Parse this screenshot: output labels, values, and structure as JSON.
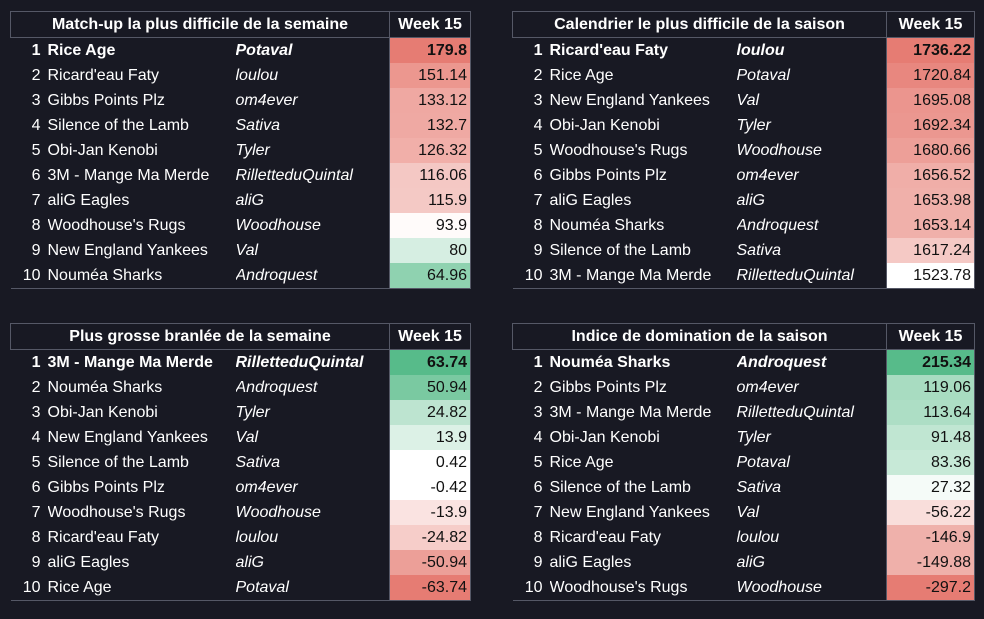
{
  "colors": {
    "background": "#181923",
    "grid": "#555866",
    "red_scale": [
      "#e67c73",
      "#ffffff"
    ],
    "green_scale": [
      "#57bb8a",
      "#ffffff"
    ]
  },
  "panels": [
    {
      "title": "Match-up la plus difficile de la semaine",
      "week_label": "Week 15",
      "rows": [
        {
          "rank": "1",
          "team": "Rice Age",
          "owner": "Potaval",
          "value": "179.8",
          "color": "#e67c73"
        },
        {
          "rank": "2",
          "team": "Ricard'eau Faty",
          "owner": "loulou",
          "value": "151.14",
          "color": "#ec978f"
        },
        {
          "rank": "3",
          "team": "Gibbs Points Plz",
          "owner": "om4ever",
          "value": "133.12",
          "color": "#efa8a2"
        },
        {
          "rank": "4",
          "team": "Silence of the Lamb",
          "owner": "Sativa",
          "value": "132.7",
          "color": "#efa9a3"
        },
        {
          "rank": "5",
          "team": "Obi-Jan Kenobi",
          "owner": "Tyler",
          "value": "126.32",
          "color": "#f1afa9"
        },
        {
          "rank": "6",
          "team": "3M - Mange Ma Merde",
          "owner": "RilletteduQuintal",
          "value": "116.06",
          "color": "#f4c8c4"
        },
        {
          "rank": "7",
          "team": "aliG Eagles",
          "owner": "aliG",
          "value": "115.9",
          "color": "#f4c9c5"
        },
        {
          "rank": "8",
          "team": "Woodhouse's Rugs",
          "owner": "Woodhouse",
          "value": "93.9",
          "color": "#fffbfa"
        },
        {
          "rank": "9",
          "team": "New England Yankees",
          "owner": "Val",
          "value": "80",
          "color": "#d6eee2"
        },
        {
          "rank": "10",
          "team": "Nouméa Sharks",
          "owner": "Androquest",
          "value": "64.96",
          "color": "#8fd2b0"
        }
      ]
    },
    {
      "title": "Calendrier le plus difficile de la saison",
      "week_label": "Week 15",
      "rows": [
        {
          "rank": "1",
          "team": "Ricard'eau Faty",
          "owner": "loulou",
          "value": "1736.22",
          "color": "#e67c73"
        },
        {
          "rank": "2",
          "team": "Rice Age",
          "owner": "Potaval",
          "value": "1720.84",
          "color": "#e8877f"
        },
        {
          "rank": "3",
          "team": "New England Yankees",
          "owner": "Val",
          "value": "1695.08",
          "color": "#eb958e"
        },
        {
          "rank": "4",
          "team": "Obi-Jan Kenobi",
          "owner": "Tyler",
          "value": "1692.34",
          "color": "#eb9790"
        },
        {
          "rank": "5",
          "team": "Woodhouse's Rugs",
          "owner": "Woodhouse",
          "value": "1680.66",
          "color": "#ed9f98"
        },
        {
          "rank": "6",
          "team": "Gibbs Points Plz",
          "owner": "om4ever",
          "value": "1656.52",
          "color": "#f0aea8"
        },
        {
          "rank": "7",
          "team": "aliG Eagles",
          "owner": "aliG",
          "value": "1653.98",
          "color": "#f0b0aa"
        },
        {
          "rank": "8",
          "team": "Nouméa Sharks",
          "owner": "Androquest",
          "value": "1653.14",
          "color": "#f0b0aa"
        },
        {
          "rank": "9",
          "team": "Silence of the Lamb",
          "owner": "Sativa",
          "value": "1617.24",
          "color": "#f5c9c5"
        },
        {
          "rank": "10",
          "team": "3M - Mange Ma Merde",
          "owner": "RilletteduQuintal",
          "value": "1523.78",
          "color": "#ffffff"
        }
      ]
    },
    {
      "title": "Plus grosse branlée de la semaine",
      "week_label": "Week 15",
      "rows": [
        {
          "rank": "1",
          "team": "3M - Mange Ma Merde",
          "owner": "RilletteduQuintal",
          "value": "63.74",
          "color": "#57bb8a"
        },
        {
          "rank": "2",
          "team": "Nouméa Sharks",
          "owner": "Androquest",
          "value": "50.94",
          "color": "#7ac9a1"
        },
        {
          "rank": "3",
          "team": "Obi-Jan Kenobi",
          "owner": "Tyler",
          "value": "24.82",
          "color": "#bde4d0"
        },
        {
          "rank": "4",
          "team": "New England Yankees",
          "owner": "Val",
          "value": "13.9",
          "color": "#dcf1e6"
        },
        {
          "rank": "5",
          "team": "Silence of the Lamb",
          "owner": "Sativa",
          "value": "0.42",
          "color": "#ffffff"
        },
        {
          "rank": "6",
          "team": "Gibbs Points Plz",
          "owner": "om4ever",
          "value": "-0.42",
          "color": "#ffffff"
        },
        {
          "rank": "7",
          "team": "Woodhouse's Rugs",
          "owner": "Woodhouse",
          "value": "-13.9",
          "color": "#fae3e1"
        },
        {
          "rank": "8",
          "team": "Ricard'eau Faty",
          "owner": "loulou",
          "value": "-24.82",
          "color": "#f6cdc9"
        },
        {
          "rank": "9",
          "team": "aliG Eagles",
          "owner": "aliG",
          "value": "-50.94",
          "color": "#ec9f98"
        },
        {
          "rank": "10",
          "team": "Rice Age",
          "owner": "Potaval",
          "value": "-63.74",
          "color": "#e67c73"
        }
      ]
    },
    {
      "title": "Indice de domination de la saison",
      "week_label": "Week 15",
      "rows": [
        {
          "rank": "1",
          "team": "Nouméa Sharks",
          "owner": "Androquest",
          "value": "215.34",
          "color": "#57bb8a"
        },
        {
          "rank": "2",
          "team": "Gibbs Points Plz",
          "owner": "om4ever",
          "value": "119.06",
          "color": "#a8dcc1"
        },
        {
          "rank": "3",
          "team": "3M - Mange Ma Merde",
          "owner": "RilletteduQuintal",
          "value": "113.64",
          "color": "#addec5"
        },
        {
          "rank": "4",
          "team": "Obi-Jan Kenobi",
          "owner": "Tyler",
          "value": "91.48",
          "color": "#c0e6d2"
        },
        {
          "rank": "5",
          "team": "Rice Age",
          "owner": "Potaval",
          "value": "83.36",
          "color": "#c7e9d7"
        },
        {
          "rank": "6",
          "team": "Silence of the Lamb",
          "owner": "Sativa",
          "value": "27.32",
          "color": "#f5fbf8"
        },
        {
          "rank": "7",
          "team": "New England Yankees",
          "owner": "Val",
          "value": "-56.22",
          "color": "#f9dedb"
        },
        {
          "rank": "8",
          "team": "Ricard'eau Faty",
          "owner": "loulou",
          "value": "-146.9",
          "color": "#efb1ab"
        },
        {
          "rank": "9",
          "team": "aliG Eagles",
          "owner": "aliG",
          "value": "-149.88",
          "color": "#efb0aa"
        },
        {
          "rank": "10",
          "team": "Woodhouse's Rugs",
          "owner": "Woodhouse",
          "value": "-297.2",
          "color": "#e67c73"
        }
      ]
    }
  ]
}
